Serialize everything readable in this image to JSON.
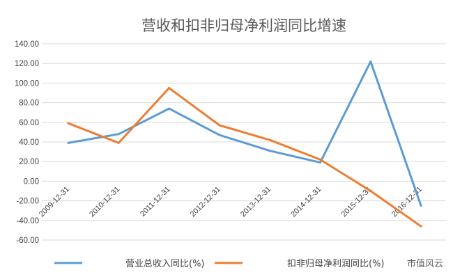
{
  "chart_data": {
    "type": "line",
    "title": "营收和扣非归母净利润同比增速",
    "categories": [
      "2009-12-31",
      "2010-12-31",
      "2011-12-31",
      "2012-12-31",
      "2013-12-31",
      "2014-12-31",
      "2015-12-31",
      "2016-12-31"
    ],
    "series": [
      {
        "name": "营业总收入同比(%)",
        "color": "#5b9bd5",
        "values": [
          39,
          48,
          74,
          47,
          31,
          19,
          122,
          -25
        ]
      },
      {
        "name": "扣非归母净利润同比(%)",
        "color": "#ed7d31",
        "values": [
          59,
          39,
          95,
          57,
          42,
          22,
          -10,
          -46
        ]
      }
    ],
    "yticks": [
      "140.00",
      "120.00",
      "100.00",
      "80.00",
      "60.00",
      "40.00",
      "20.00",
      "0.00",
      "-20.00",
      "-40.00",
      "-60.00"
    ],
    "ylim": [
      -60,
      140
    ],
    "grid": true,
    "legend": "bottom"
  },
  "watermark": "市值风云"
}
